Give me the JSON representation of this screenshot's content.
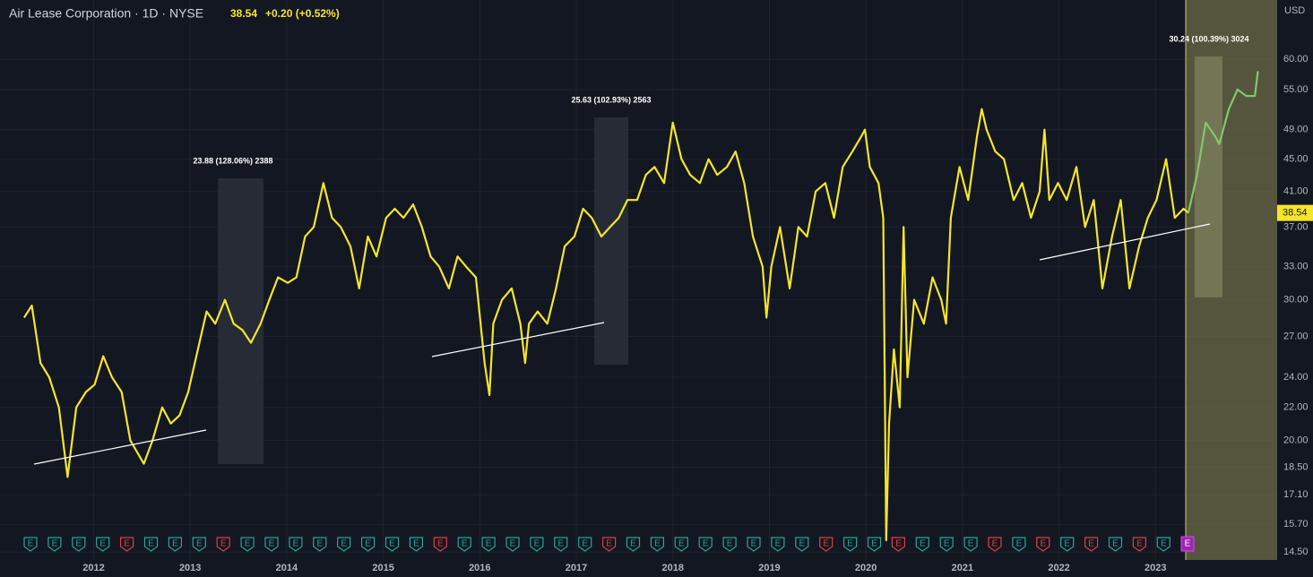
{
  "chart_data": {
    "type": "line",
    "title": "Air Lease Corporation · 1D · NYSE",
    "last_price": 38.54,
    "change": "+0.20 (+0.52%)",
    "currency": "USD",
    "annotations": [
      "23.88 (128.06%) 2388",
      "25.63 (102.93%) 2563",
      "30.24 (100.39%) 3024"
    ],
    "earnings_label": "E",
    "log_scale": true,
    "grid": true,
    "xlim": [
      2011.03,
      2024.26
    ],
    "xticks": [
      2012,
      2013,
      2014,
      2015,
      2016,
      2017,
      2018,
      2019,
      2020,
      2021,
      2022,
      2023
    ],
    "ylim": [
      14.17,
      71.2
    ],
    "yticks": [
      {
        "value": 14.5,
        "label": "14.50"
      },
      {
        "value": 15.7,
        "label": "15.70"
      },
      {
        "value": 17.1,
        "label": "17.10"
      },
      {
        "value": 18.5,
        "label": "18.50"
      },
      {
        "value": 20,
        "label": "20.00"
      },
      {
        "value": 22,
        "label": "22.00"
      },
      {
        "value": 24,
        "label": "24.00"
      },
      {
        "value": 27,
        "label": "27.00"
      },
      {
        "value": 30,
        "label": "30.00"
      },
      {
        "value": 33,
        "label": "33.00"
      },
      {
        "value": 37,
        "label": "37.00"
      },
      {
        "value": 41,
        "label": "41.00"
      },
      {
        "value": 45,
        "label": "45.00"
      },
      {
        "value": 49,
        "label": "49.00"
      },
      {
        "value": 55,
        "label": "55.00"
      },
      {
        "value": 60,
        "label": "60.00"
      }
    ],
    "series": [
      {
        "color": "#f5e52b",
        "x": [
          2011.28,
          2011.36,
          2011.45,
          2011.54,
          2011.64,
          2011.73,
          2011.82,
          2011.92,
          2012.01,
          2012.1,
          2012.19,
          2012.29,
          2012.38,
          2012.52,
          2012.61,
          2012.71,
          2012.8,
          2012.89,
          2012.98,
          2013.08,
          2013.17,
          2013.26,
          2013.36,
          2013.45,
          2013.54,
          2013.63,
          2013.73,
          2013.82,
          2013.91,
          2014.01,
          2014.1,
          2014.19,
          2014.28,
          2014.38,
          2014.47,
          2014.56,
          2014.66,
          2014.75,
          2014.84,
          2014.93,
          2015.03,
          2015.12,
          2015.21,
          2015.31,
          2015.4,
          2015.49,
          2015.58,
          2015.68,
          2015.77,
          2015.86,
          2015.96,
          2016.05,
          2016.1,
          2016.14,
          2016.23,
          2016.33,
          2016.42,
          2016.47,
          2016.51,
          2016.6,
          2016.7,
          2016.79,
          2016.88,
          2016.98,
          2017.07,
          2017.16,
          2017.26,
          2017.35,
          2017.44,
          2017.53,
          2017.63,
          2017.72,
          2017.81,
          2017.91,
          2018.0,
          2018.09,
          2018.18,
          2018.28,
          2018.37,
          2018.46,
          2018.56,
          2018.65,
          2018.74,
          2018.83,
          2018.93,
          2018.97,
          2019.02,
          2019.11,
          2019.21,
          2019.3,
          2019.39,
          2019.48,
          2019.58,
          2019.67,
          2019.76,
          2019.86,
          2019.95,
          2019.99,
          2020.04,
          2020.13,
          2020.18,
          2020.21,
          2020.24,
          2020.29,
          2020.35,
          2020.39,
          2020.43,
          2020.5,
          2020.6,
          2020.69,
          2020.78,
          2020.83,
          2020.88,
          2020.97,
          2021.06,
          2021.15,
          2021.2,
          2021.25,
          2021.34,
          2021.43,
          2021.53,
          2021.62,
          2021.71,
          2021.8,
          2021.85,
          2021.9,
          2021.99,
          2022.08,
          2022.18,
          2022.27,
          2022.36,
          2022.45,
          2022.55,
          2022.64,
          2022.73,
          2022.83,
          2022.92,
          2023.01,
          2023.11,
          2023.2,
          2023.29,
          2023.34
        ],
        "values": [
          28.5,
          29.5,
          25,
          24,
          22,
          18,
          22,
          23,
          23.5,
          25.5,
          24,
          23,
          20,
          18.7,
          20,
          22,
          21,
          21.5,
          23,
          26,
          29,
          28,
          30,
          28,
          27.5,
          26.5,
          28,
          30,
          32,
          31.5,
          32,
          36,
          37,
          42,
          38,
          37,
          35,
          31,
          36,
          34,
          38,
          39,
          38,
          39.5,
          37,
          34,
          33,
          31,
          34,
          33,
          32,
          25,
          22.8,
          28,
          30,
          31,
          28,
          25,
          28,
          29,
          28,
          31,
          35,
          36,
          39,
          38,
          36,
          37,
          38,
          40,
          40,
          43,
          44,
          42,
          50,
          45,
          43,
          42,
          45,
          43,
          44,
          46,
          42,
          36,
          33,
          28.5,
          33,
          37,
          31,
          37,
          36,
          41,
          42,
          38,
          44,
          46,
          48,
          49,
          44,
          42,
          38,
          15,
          21,
          26,
          22,
          37,
          24,
          30,
          28,
          32,
          30,
          28,
          38,
          44,
          40,
          48,
          52,
          49,
          46,
          45,
          40,
          42,
          38,
          41,
          49,
          40,
          42,
          40,
          44,
          37,
          40,
          31,
          36,
          40,
          31,
          35,
          38,
          40,
          45,
          38,
          39,
          38.54
        ]
      },
      {
        "color": "#7fc96b",
        "x": [
          2023.34,
          2023.43,
          2023.52,
          2023.62,
          2023.66,
          2023.76,
          2023.85,
          2023.94,
          2024.03,
          2024.06
        ],
        "values": [
          38.54,
          43,
          50,
          48,
          47,
          52,
          55,
          54,
          54,
          58
        ]
      }
    ]
  }
}
